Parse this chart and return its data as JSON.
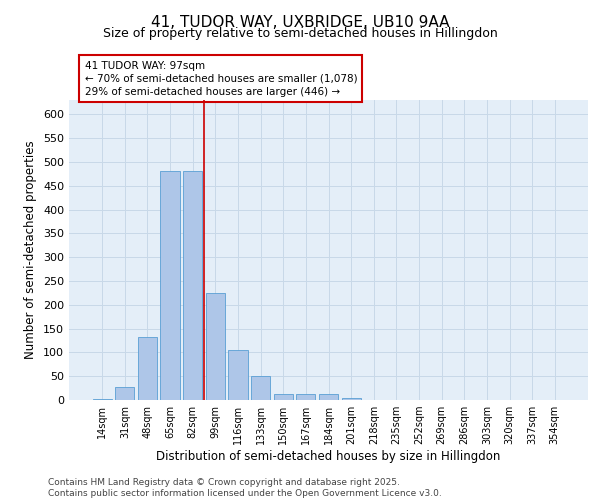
{
  "title_line1": "41, TUDOR WAY, UXBRIDGE, UB10 9AA",
  "title_line2": "Size of property relative to semi-detached houses in Hillingdon",
  "xlabel": "Distribution of semi-detached houses by size in Hillingdon",
  "ylabel": "Number of semi-detached properties",
  "categories": [
    "14sqm",
    "31sqm",
    "48sqm",
    "65sqm",
    "82sqm",
    "99sqm",
    "116sqm",
    "133sqm",
    "150sqm",
    "167sqm",
    "184sqm",
    "201sqm",
    "218sqm",
    "235sqm",
    "252sqm",
    "269sqm",
    "286sqm",
    "303sqm",
    "320sqm",
    "337sqm",
    "354sqm"
  ],
  "values": [
    2,
    27,
    133,
    480,
    480,
    225,
    105,
    50,
    13,
    12,
    13,
    4,
    0,
    0,
    0,
    0,
    0,
    0,
    1,
    0,
    1
  ],
  "bar_color": "#aec6e8",
  "bar_edge_color": "#5a9fd4",
  "vline_x": 4.5,
  "annotation_line1": "41 TUDOR WAY: 97sqm",
  "annotation_line2": "← 70% of semi-detached houses are smaller (1,078)",
  "annotation_line3": "29% of semi-detached houses are larger (446) →",
  "annotation_box_edge_color": "#cc0000",
  "vline_color": "#cc0000",
  "ylim_max": 630,
  "yticks": [
    0,
    50,
    100,
    150,
    200,
    250,
    300,
    350,
    400,
    450,
    500,
    550,
    600
  ],
  "grid_color": "#c8d8e8",
  "background_color": "#e4eef8",
  "footer_text": "Contains HM Land Registry data © Crown copyright and database right 2025.\nContains public sector information licensed under the Open Government Licence v3.0.",
  "title_fontsize": 11,
  "subtitle_fontsize": 9,
  "tick_fontsize": 7,
  "label_fontsize": 8.5,
  "annot_fontsize": 7.5,
  "footer_fontsize": 6.5
}
